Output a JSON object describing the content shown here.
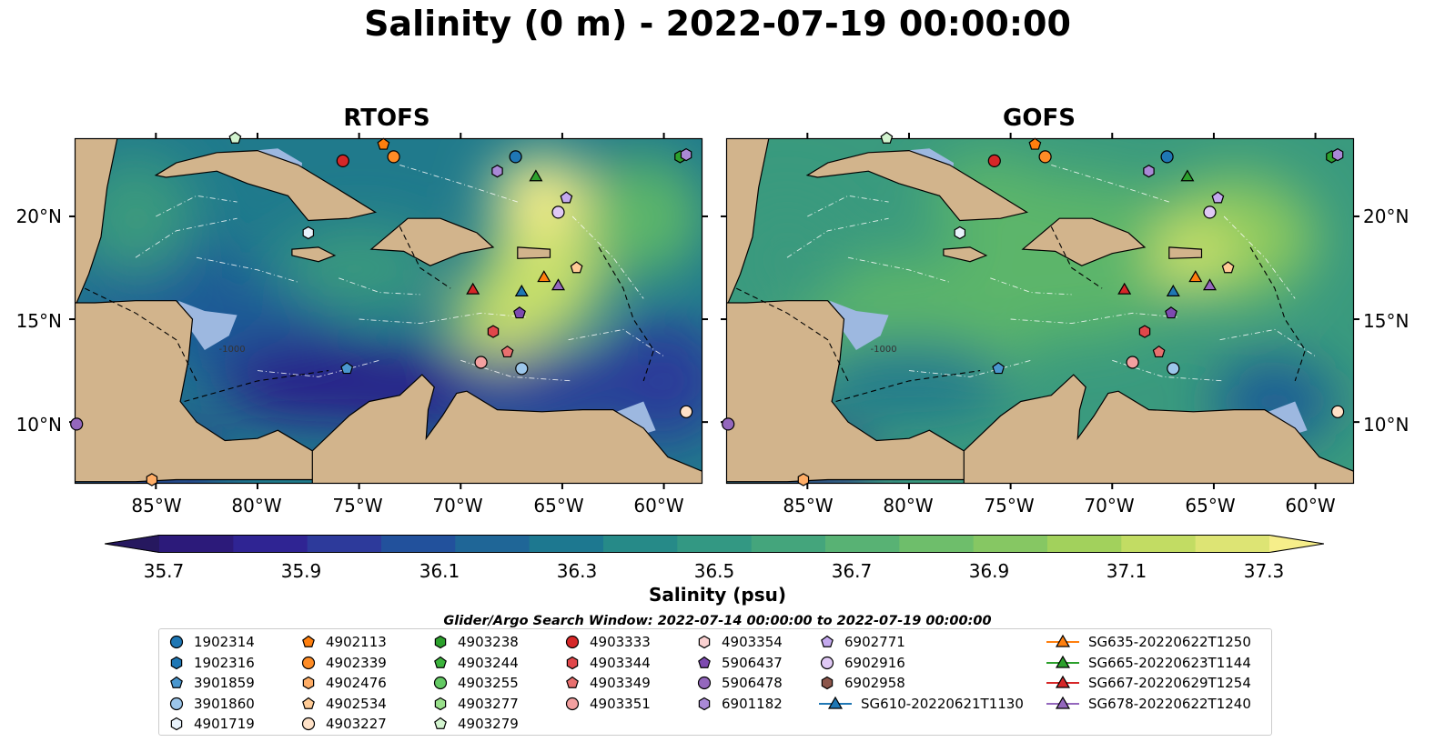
{
  "title": "Salinity (0 m) - 2022-07-19 00:00:00",
  "panels": [
    {
      "title": "RTOFS",
      "palette": [
        "#261462",
        "#2b1f8a",
        "#2c3a9a",
        "#1f5a96",
        "#207a8c",
        "#3a9a7e",
        "#5cb56a",
        "#8cc95e",
        "#c8df6a",
        "#f6ee8a"
      ]
    },
    {
      "title": "GOFS",
      "palette": [
        "#261462",
        "#2b1f8a",
        "#2c3a9a",
        "#1f5a96",
        "#207a8c",
        "#3a9a7e",
        "#5cb56a",
        "#8cc95e",
        "#c8df6a",
        "#f6ee8a"
      ]
    }
  ],
  "map": {
    "lon_ticks": [
      "85°W",
      "80°W",
      "75°W",
      "70°W",
      "65°W",
      "60°W"
    ],
    "lat_ticks": [
      "20°N",
      "15°N",
      "10°N"
    ],
    "contour_label": "-1000",
    "land_color": "#d2b48c",
    "shelf_color": "#9db8e0"
  },
  "colorbar": {
    "labels": [
      "35.7",
      "35.9",
      "36.1",
      "36.3",
      "36.5",
      "36.7",
      "36.9",
      "37.1",
      "37.3"
    ],
    "colors": [
      "#26185f",
      "#2c1a7a",
      "#2f2493",
      "#2d3a9b",
      "#22519c",
      "#1f6697",
      "#1d7890",
      "#268a88",
      "#339883",
      "#44a57c",
      "#58b274",
      "#6ebe6b",
      "#86c763",
      "#a2d15c",
      "#c2dc63",
      "#dde474",
      "#f6ee8a"
    ],
    "title": "Salinity (psu)"
  },
  "search_window": "Glider/Argo Search Window: 2022-07-14 00:00:00 to 2022-07-19 00:00:00",
  "legend": {
    "columns": [
      [
        {
          "label": "1902314",
          "marker": "circle",
          "color": "#1f77b4"
        },
        {
          "label": "1902316",
          "marker": "hexagon",
          "color": "#1f77b4"
        },
        {
          "label": "3901859",
          "marker": "pentagon",
          "color": "#4a97cf"
        },
        {
          "label": "3901860",
          "marker": "circle",
          "color": "#9cc6ea"
        },
        {
          "label": "4901719",
          "marker": "hexagon",
          "color": "#e8f2fb"
        }
      ],
      [
        {
          "label": "4902113",
          "marker": "pentagon",
          "color": "#ff7f0e"
        },
        {
          "label": "4902339",
          "marker": "circle",
          "color": "#ff8c26"
        },
        {
          "label": "4902476",
          "marker": "hexagon",
          "color": "#ffad66"
        },
        {
          "label": "4902534",
          "marker": "pentagon",
          "color": "#ffcb96"
        },
        {
          "label": "4903227",
          "marker": "circle",
          "color": "#ffe2c8"
        }
      ],
      [
        {
          "label": "4903238",
          "marker": "hexagon",
          "color": "#2ca02c"
        },
        {
          "label": "4903244",
          "marker": "pentagon",
          "color": "#3cb33c"
        },
        {
          "label": "4903255",
          "marker": "circle",
          "color": "#63c963"
        },
        {
          "label": "4903277",
          "marker": "hexagon",
          "color": "#98df8a"
        },
        {
          "label": "4903279",
          "marker": "pentagon",
          "color": "#d3f4cf"
        }
      ],
      [
        {
          "label": "4903333",
          "marker": "circle",
          "color": "#d62728"
        },
        {
          "label": "4903344",
          "marker": "hexagon",
          "color": "#e0474a"
        },
        {
          "label": "4903349",
          "marker": "pentagon",
          "color": "#e8706f"
        },
        {
          "label": "4903351",
          "marker": "circle",
          "color": "#f3a0a0"
        }
      ],
      [
        {
          "label": "4903354",
          "marker": "hexagon",
          "color": "#fad1d1"
        },
        {
          "label": "5906437",
          "marker": "pentagon",
          "color": "#7d4ab0"
        },
        {
          "label": "5906478",
          "marker": "circle",
          "color": "#9467bd"
        },
        {
          "label": "6901182",
          "marker": "hexagon",
          "color": "#a989d6"
        }
      ],
      [
        {
          "label": "6902771",
          "marker": "pentagon",
          "color": "#c4a9ee"
        },
        {
          "label": "6902916",
          "marker": "circle",
          "color": "#e0c9f5"
        },
        {
          "label": "6902958",
          "marker": "hexagon",
          "color": "#8c564b"
        },
        {
          "label": "SG610-20220621T1130",
          "marker": "triangle-line",
          "color": "#1f77b4"
        }
      ],
      [
        {
          "label": "SG635-20220622T1250",
          "marker": "triangle-line",
          "color": "#ff7f0e"
        },
        {
          "label": "SG665-20220623T1144",
          "marker": "triangle-line",
          "color": "#2ca02c"
        },
        {
          "label": "SG667-20220629T1254",
          "marker": "triangle-line",
          "color": "#d62728"
        },
        {
          "label": "SG678-20220622T1240",
          "marker": "triangle-line",
          "color": "#9467bd"
        }
      ]
    ]
  },
  "observations": [
    {
      "id": "1902314",
      "lat": 22.9,
      "lon": -67.3,
      "marker": "circle",
      "color": "#1f77b4"
    },
    {
      "id": "4903333",
      "lat": 22.7,
      "lon": -75.8,
      "marker": "circle",
      "color": "#d62728"
    },
    {
      "id": "4902113",
      "lat": 23.5,
      "lon": -73.8,
      "marker": "pentagon",
      "color": "#ff7f0e"
    },
    {
      "id": "4902339",
      "lat": 22.9,
      "lon": -73.3,
      "marker": "circle",
      "color": "#ff8c26"
    },
    {
      "id": "6901182",
      "lat": 22.2,
      "lon": -68.2,
      "marker": "hexagon",
      "color": "#a989d6"
    },
    {
      "id": "SG665-20220623T1144",
      "lat": 21.9,
      "lon": -66.3,
      "marker": "triangle",
      "color": "#2ca02c"
    },
    {
      "id": "6902771",
      "lat": 20.9,
      "lon": -64.8,
      "marker": "pentagon",
      "color": "#c4a9ee"
    },
    {
      "id": "6902916",
      "lat": 20.2,
      "lon": -65.2,
      "marker": "circle",
      "color": "#e0c9f5"
    },
    {
      "id": "4901719",
      "lat": 19.2,
      "lon": -77.5,
      "marker": "hexagon",
      "color": "#e8f2fb"
    },
    {
      "id": "4903238",
      "lat": 22.9,
      "lon": -59.2,
      "marker": "hexagon",
      "color": "#2ca02c"
    },
    {
      "id": "6901182b",
      "lat": 23.0,
      "lon": -58.9,
      "marker": "hexagon",
      "color": "#a989d6"
    },
    {
      "id": "4903279",
      "lat": 23.8,
      "lon": -81.1,
      "marker": "pentagon",
      "color": "#d3f4cf"
    },
    {
      "id": "4902534",
      "lat": 17.5,
      "lon": -64.3,
      "marker": "pentagon",
      "color": "#ffcb96"
    },
    {
      "id": "SG635-20220622T1250",
      "lat": 17.0,
      "lon": -65.9,
      "marker": "triangle",
      "color": "#ff7f0e"
    },
    {
      "id": "SG678-20220622T1240",
      "lat": 16.6,
      "lon": -65.2,
      "marker": "triangle",
      "color": "#9467bd"
    },
    {
      "id": "SG667-20220629T1254",
      "lat": 16.4,
      "lon": -69.4,
      "marker": "triangle",
      "color": "#d62728"
    },
    {
      "id": "SG610-20220621T1130",
      "lat": 16.3,
      "lon": -67.0,
      "marker": "triangle",
      "color": "#1f77b4"
    },
    {
      "id": "5906437",
      "lat": 15.3,
      "lon": -67.1,
      "marker": "pentagon",
      "color": "#7d4ab0"
    },
    {
      "id": "4903344",
      "lat": 14.4,
      "lon": -68.4,
      "marker": "hexagon",
      "color": "#e0474a"
    },
    {
      "id": "4903349",
      "lat": 13.4,
      "lon": -67.7,
      "marker": "pentagon",
      "color": "#e8706f"
    },
    {
      "id": "4903351",
      "lat": 12.9,
      "lon": -69.0,
      "marker": "circle",
      "color": "#f3a0a0"
    },
    {
      "id": "3901860",
      "lat": 12.6,
      "lon": -67.0,
      "marker": "circle",
      "color": "#9cc6ea"
    },
    {
      "id": "3901859",
      "lat": 12.6,
      "lon": -75.6,
      "marker": "pentagon",
      "color": "#4a97cf"
    },
    {
      "id": "5906478",
      "lat": 9.9,
      "lon": -88.9,
      "marker": "circle",
      "color": "#9467bd"
    },
    {
      "id": "4903227",
      "lat": 10.5,
      "lon": -58.9,
      "marker": "circle",
      "color": "#ffe2c8"
    },
    {
      "id": "4902476",
      "lat": 7.2,
      "lon": -85.2,
      "marker": "hexagon",
      "color": "#ffad66"
    }
  ]
}
